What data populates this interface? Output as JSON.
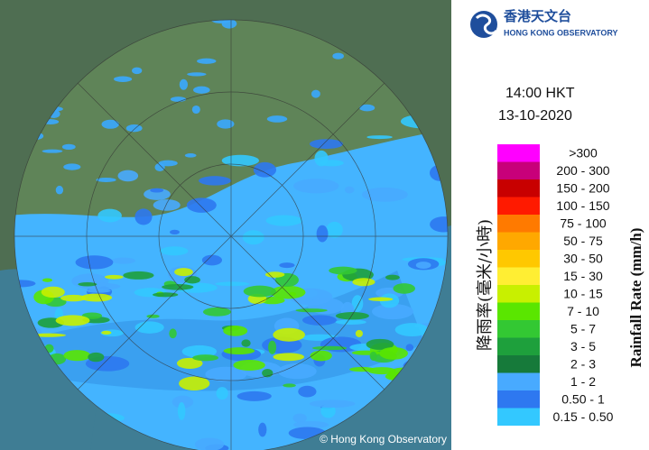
{
  "header": {
    "logo_chinese": "香港天文台",
    "logo_english": "HONG KONG OBSERVATORY"
  },
  "timestamp": {
    "time": "14:00 HKT",
    "date": "13-10-2020"
  },
  "legend": {
    "title_chinese": "降雨率(毫米/小時)",
    "title_english": "Rainfall Rate (mm/h)",
    "items": [
      {
        "label": ">300",
        "color": "#ff00ff"
      },
      {
        "label": "200 - 300",
        "color": "#c8007a"
      },
      {
        "label": "150 - 200",
        "color": "#c80000"
      },
      {
        "label": "100 - 150",
        "color": "#ff1a00"
      },
      {
        "label": "75 - 100",
        "color": "#ff7a00"
      },
      {
        "label": "50 - 75",
        "color": "#ffa800"
      },
      {
        "label": "30 - 50",
        "color": "#ffc800"
      },
      {
        "label": "15 - 30",
        "color": "#ffee33"
      },
      {
        "label": "10 - 15",
        "color": "#c8f000"
      },
      {
        "label": "7 - 10",
        "color": "#5ae600"
      },
      {
        "label": "5 - 7",
        "color": "#33c833"
      },
      {
        "label": "3 - 5",
        "color": "#1ea03c"
      },
      {
        "label": "2 - 3",
        "color": "#167a3a"
      },
      {
        "label": "1 - 2",
        "color": "#48aaff"
      },
      {
        "label": "0.50 - 1",
        "color": "#2e78f0"
      },
      {
        "label": "0.15 - 0.50",
        "color": "#33c8ff"
      }
    ]
  },
  "footer": {
    "copyright": "© Hong Kong Observatory"
  }
}
